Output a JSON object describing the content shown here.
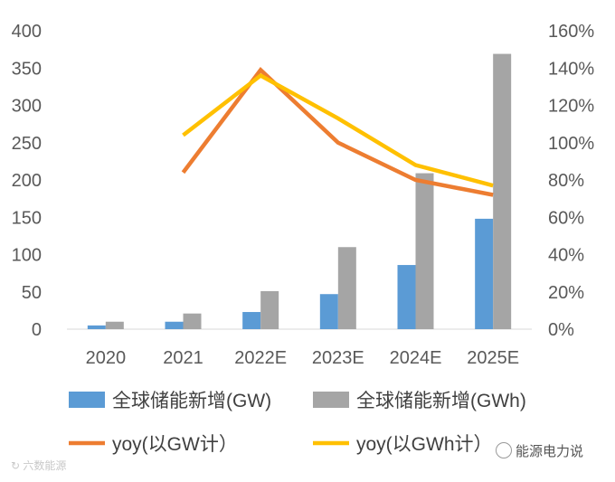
{
  "chart_data": {
    "type": "bar",
    "categories": [
      "2020",
      "2021",
      "2022E",
      "2023E",
      "2024E",
      "2025E"
    ],
    "series": [
      {
        "name": "全球储能新增(GW)",
        "kind": "bar",
        "axis": "left",
        "color": "#5b9bd5",
        "values": [
          5,
          10,
          23,
          47,
          86,
          148
        ]
      },
      {
        "name": "全球储能新增(GWh)",
        "kind": "bar",
        "axis": "left",
        "color": "#a5a5a5",
        "values": [
          10,
          21,
          51,
          110,
          209,
          369
        ]
      },
      {
        "name": "yoy(以GW计）",
        "kind": "line",
        "axis": "right",
        "color": "#ed7d31",
        "values": [
          null,
          84,
          139,
          100,
          80,
          72
        ]
      },
      {
        "name": "yoy(以GWh计）",
        "kind": "line",
        "axis": "right",
        "color": "#ffc000",
        "values": [
          null,
          104,
          136,
          113,
          88,
          77
        ]
      }
    ],
    "left_axis": {
      "min": 0,
      "max": 400,
      "ticks": [
        0,
        50,
        100,
        150,
        200,
        250,
        300,
        350,
        400
      ]
    },
    "right_axis": {
      "min": 0,
      "max": 160,
      "ticks": [
        "0%",
        "20%",
        "40%",
        "60%",
        "80%",
        "100%",
        "120%",
        "140%",
        "160%"
      ]
    },
    "grid": false,
    "legend_position": "bottom"
  },
  "watermark": {
    "left": "六数能源",
    "right": "能源电力说"
  }
}
